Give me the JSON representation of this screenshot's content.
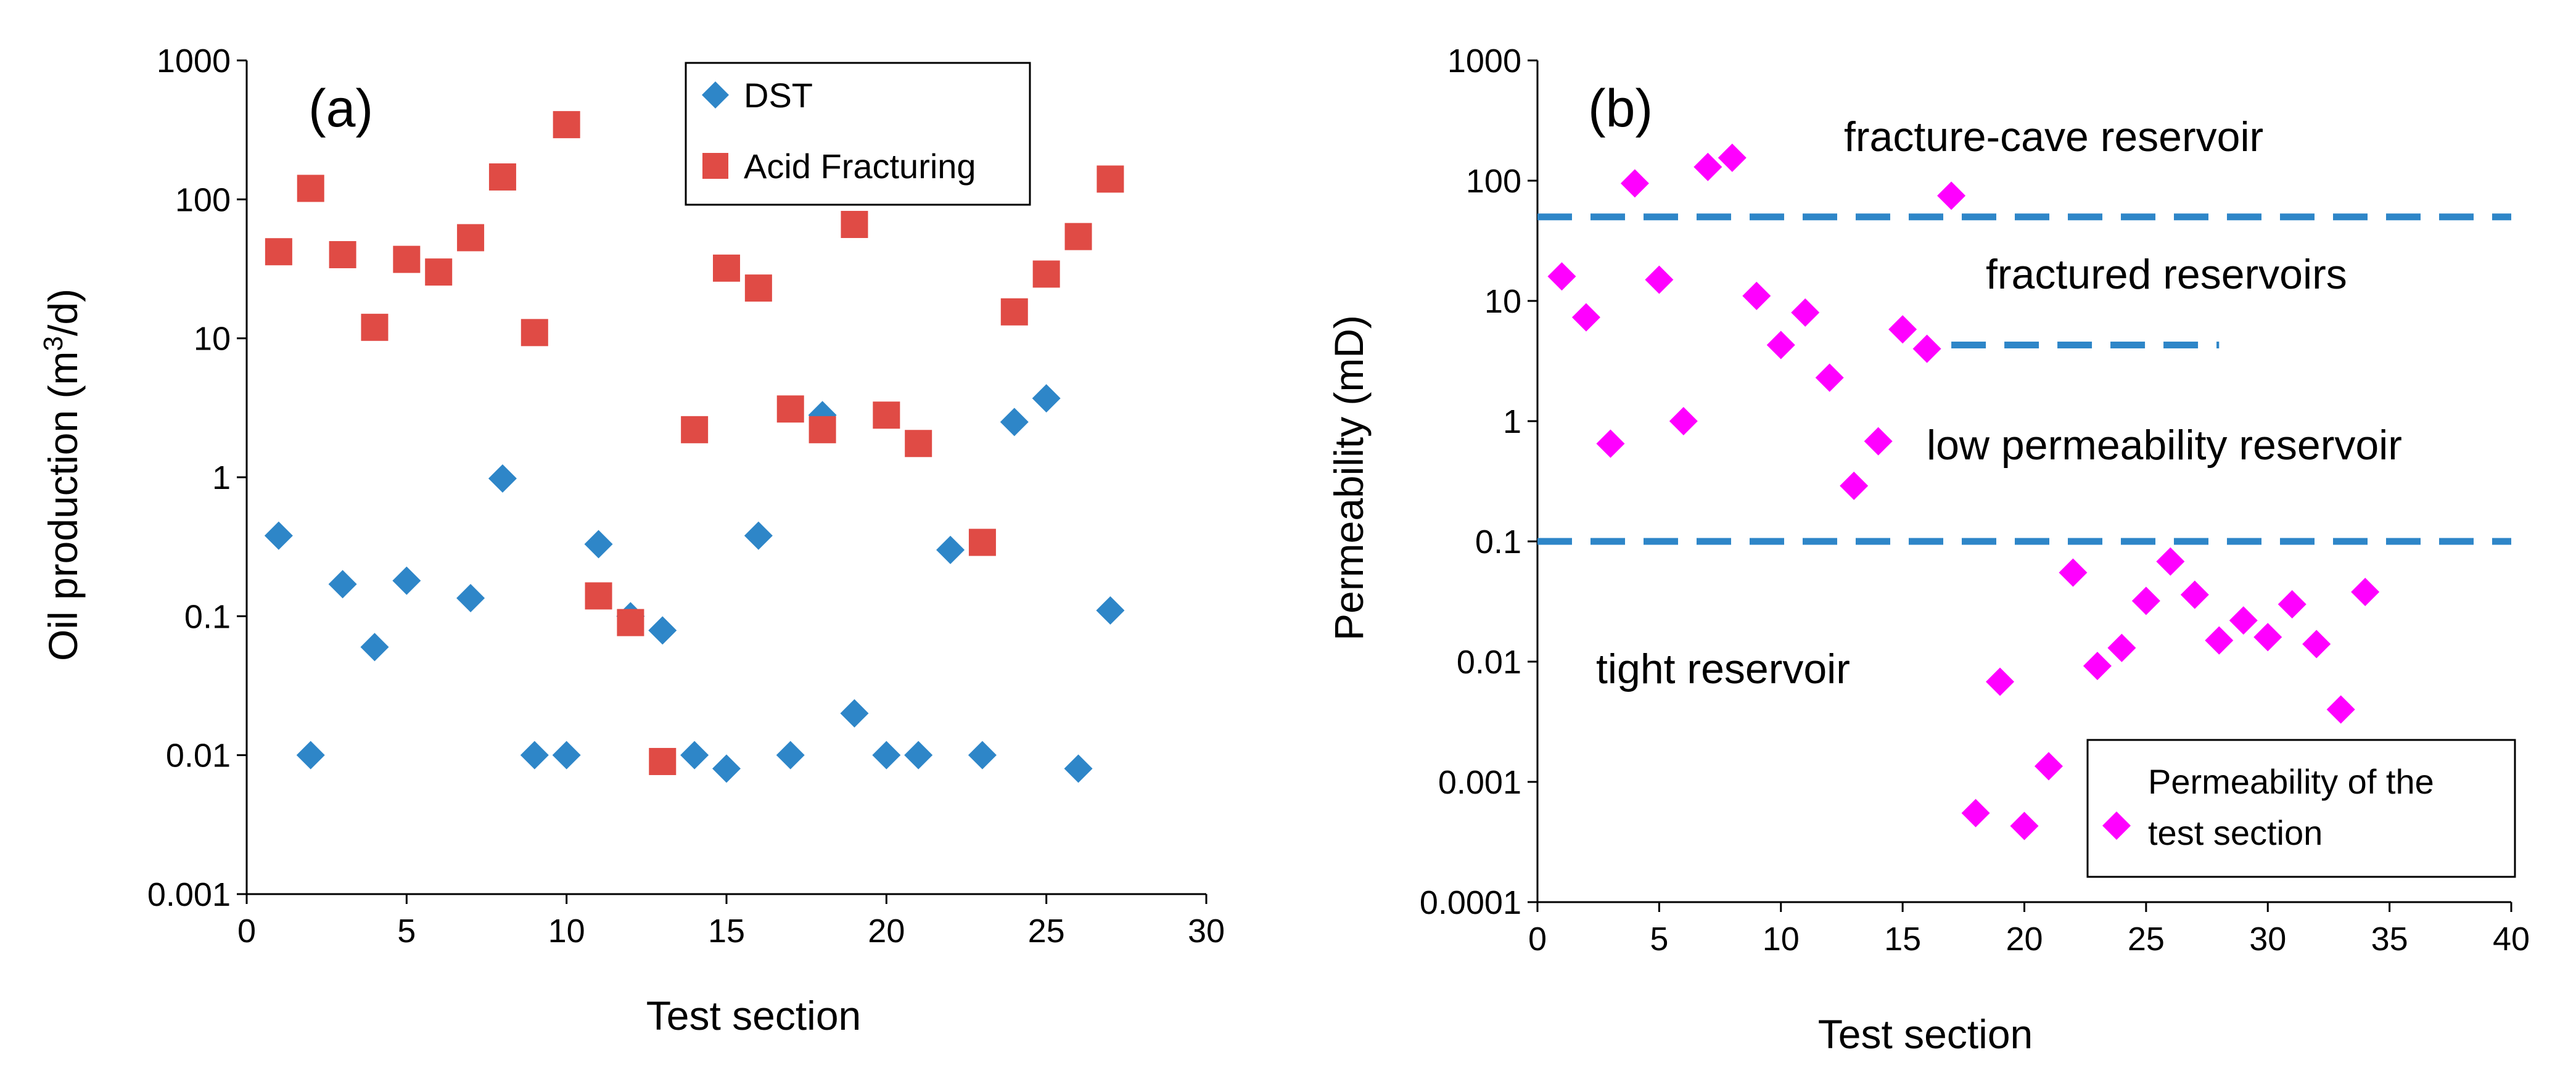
{
  "chart_data": [
    {
      "type": "scatter",
      "panel_label": "(a)",
      "xlabel": "Test section",
      "ylabel_main": "Oil production (m",
      "ylabel_sup": "3",
      "ylabel_tail": "/d)",
      "xlim": [
        0,
        30
      ],
      "ylim": [
        0.001,
        1000
      ],
      "yscale": "log",
      "x_ticks": [
        "0",
        "5",
        "10",
        "15",
        "20",
        "25",
        "30"
      ],
      "y_ticks": [
        "0.001",
        "0.01",
        "0.1",
        "1",
        "10",
        "100",
        "1000"
      ],
      "grid": false,
      "legend_position": "top-center",
      "series": [
        {
          "name": "DST",
          "marker": "diamond",
          "color": "#2e86c8",
          "points": [
            [
              1,
              0.38
            ],
            [
              2,
              0.01
            ],
            [
              3,
              0.17
            ],
            [
              4,
              0.06
            ],
            [
              5,
              0.18
            ],
            [
              7,
              0.135
            ],
            [
              8,
              0.98
            ],
            [
              9,
              0.01
            ],
            [
              10,
              0.01
            ],
            [
              11,
              0.33
            ],
            [
              12,
              0.1
            ],
            [
              13,
              0.079
            ],
            [
              14,
              0.01
            ],
            [
              15,
              0.008
            ],
            [
              16,
              0.38
            ],
            [
              17,
              0.01
            ],
            [
              18,
              2.8
            ],
            [
              19,
              0.02
            ],
            [
              20,
              0.01
            ],
            [
              21,
              0.01
            ],
            [
              22,
              0.3
            ],
            [
              23,
              0.01
            ],
            [
              24,
              2.5
            ],
            [
              25,
              3.7
            ],
            [
              26,
              0.008
            ],
            [
              27,
              0.11
            ]
          ]
        },
        {
          "name": "Acid Fracturing",
          "marker": "square",
          "color": "#e04b45",
          "points": [
            [
              1,
              42
            ],
            [
              2,
              120
            ],
            [
              3,
              40
            ],
            [
              4,
              12
            ],
            [
              5,
              37
            ],
            [
              6,
              30
            ],
            [
              7,
              53
            ],
            [
              8,
              145
            ],
            [
              9,
              11
            ],
            [
              10,
              345
            ],
            [
              11,
              0.14
            ],
            [
              12,
              0.09
            ],
            [
              13,
              0.009
            ],
            [
              14,
              2.2
            ],
            [
              15,
              32
            ],
            [
              16,
              23
            ],
            [
              17,
              3.1
            ],
            [
              18,
              2.2
            ],
            [
              19,
              66
            ],
            [
              20,
              2.8
            ],
            [
              21,
              1.75
            ],
            [
              23,
              0.34
            ],
            [
              24,
              15.5
            ],
            [
              25,
              29
            ],
            [
              26,
              54
            ],
            [
              27,
              140
            ]
          ]
        }
      ]
    },
    {
      "type": "scatter",
      "panel_label": "(b)",
      "xlabel": "Test section",
      "ylabel": "Permeability (mD)",
      "xlim": [
        0,
        40
      ],
      "ylim": [
        0.0001,
        1000
      ],
      "yscale": "log",
      "x_ticks": [
        "0",
        "5",
        "10",
        "15",
        "20",
        "25",
        "30",
        "35",
        "40"
      ],
      "y_ticks": [
        "0.0001",
        "0.001",
        "0.01",
        "0.1",
        "1",
        "10",
        "100",
        "1000"
      ],
      "grid": false,
      "legend_position": "bottom-right",
      "series": [
        {
          "name": "Permeability of the test section",
          "name_lines": [
            "Permeability of the",
            "test section"
          ],
          "marker": "diamond",
          "color": "#ff00ff",
          "points": [
            [
              1,
              16
            ],
            [
              2,
              7.3
            ],
            [
              3,
              0.65
            ],
            [
              4,
              95
            ],
            [
              5,
              15
            ],
            [
              6,
              1.0
            ],
            [
              7,
              130
            ],
            [
              8,
              155
            ],
            [
              9,
              11
            ],
            [
              10,
              4.3
            ],
            [
              11,
              8
            ],
            [
              12,
              2.3
            ],
            [
              13,
              0.29
            ],
            [
              14,
              0.68
            ],
            [
              15,
              5.8
            ],
            [
              16,
              4
            ],
            [
              17,
              75
            ],
            [
              18,
              0.00055
            ],
            [
              19,
              0.0068
            ],
            [
              20,
              0.00043
            ],
            [
              21,
              0.00135
            ],
            [
              22,
              0.055
            ],
            [
              23,
              0.0092
            ],
            [
              24,
              0.013
            ],
            [
              25,
              0.032
            ],
            [
              26,
              0.068
            ],
            [
              27,
              0.036
            ],
            [
              28,
              0.015
            ],
            [
              29,
              0.022
            ],
            [
              30,
              0.016
            ],
            [
              31,
              0.03
            ],
            [
              32,
              0.014
            ],
            [
              33,
              0.004
            ],
            [
              34,
              0.038
            ]
          ]
        }
      ],
      "reference_lines": [
        {
          "y": 50,
          "x_from": 0,
          "x_to": 40,
          "color": "#2e86c8",
          "style": "dashed"
        },
        {
          "y": 4.3,
          "x_from": 17,
          "x_to": 28,
          "color": "#2e86c8",
          "style": "dashed"
        },
        {
          "y": 0.1,
          "x_from": 0,
          "x_to": 40,
          "color": "#2e86c8",
          "style": "dashed"
        }
      ],
      "annotations": [
        {
          "text": "fracture-cave reservoir",
          "x": 13,
          "y": 150
        },
        {
          "text": "fractured reservoirs",
          "x": 19,
          "y": 15
        },
        {
          "text": "low permeability reservoir",
          "x": 16.5,
          "y": 0.8
        },
        {
          "text": "tight reservoir",
          "x": 2.5,
          "y": 0.011
        }
      ]
    }
  ]
}
